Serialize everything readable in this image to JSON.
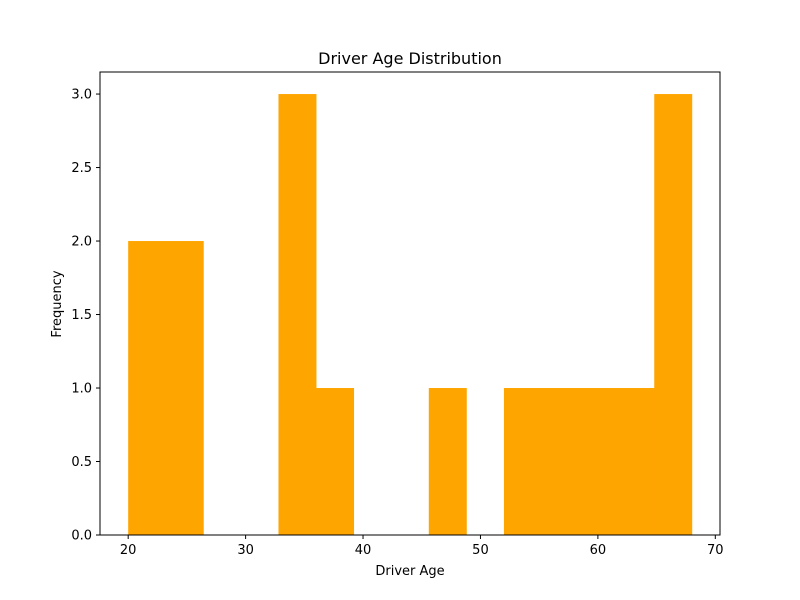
{
  "chart_data": {
    "type": "bar",
    "title": "Driver Age Distribution",
    "xlabel": "Driver Age",
    "ylabel": "Frequency",
    "xlim": [
      17.6,
      70.4
    ],
    "ylim": [
      0,
      3.15
    ],
    "bin_edges": [
      20.0,
      23.2,
      26.4,
      29.6,
      32.8,
      36.0,
      39.2,
      42.4,
      45.6,
      48.8,
      52.0,
      55.2,
      58.4,
      61.6,
      64.8,
      68.0
    ],
    "values": [
      2,
      2,
      0,
      0,
      3,
      1,
      0,
      0,
      1,
      0,
      1,
      1,
      1,
      1,
      3
    ],
    "x_ticks": [
      20,
      30,
      40,
      50,
      60,
      70
    ],
    "y_ticks": [
      0.0,
      0.5,
      1.0,
      1.5,
      2.0,
      2.5,
      3.0
    ],
    "x_tick_labels": [
      "20",
      "30",
      "40",
      "50",
      "60",
      "70"
    ],
    "y_tick_labels": [
      "0.0",
      "0.5",
      "1.0",
      "1.5",
      "2.0",
      "2.5",
      "3.0"
    ],
    "bar_color": "#ffa500",
    "grid": false
  }
}
